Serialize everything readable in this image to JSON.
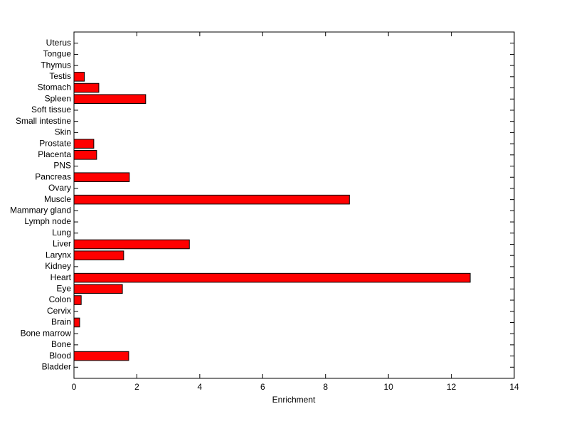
{
  "chart_data": {
    "type": "barh",
    "xlabel": "Enrichment",
    "categories": [
      "Bladder",
      "Blood",
      "Bone",
      "Bone marrow",
      "Brain",
      "Cervix",
      "Colon",
      "Eye",
      "Heart",
      "Kidney",
      "Larynx",
      "Liver",
      "Lung",
      "Lymph node",
      "Mammary gland",
      "Muscle",
      "Ovary",
      "Pancreas",
      "PNS",
      "Placenta",
      "Prostate",
      "Skin",
      "Small intestine",
      "Soft tissue",
      "Spleen",
      "Stomach",
      "Testis",
      "Thymus",
      "Tongue",
      "Uterus"
    ],
    "values": [
      0,
      1.74,
      0,
      0,
      0.18,
      0,
      0.23,
      1.54,
      12.6,
      0,
      1.58,
      3.67,
      0,
      0,
      0,
      8.76,
      0,
      1.76,
      0,
      0.72,
      0.63,
      0,
      0,
      0,
      2.28,
      0.79,
      0.33,
      0,
      0,
      0
    ],
    "color": "#ff0000",
    "xlim": [
      0,
      14
    ],
    "xticks": [
      0,
      2,
      4,
      6,
      8,
      10,
      12,
      14
    ]
  }
}
